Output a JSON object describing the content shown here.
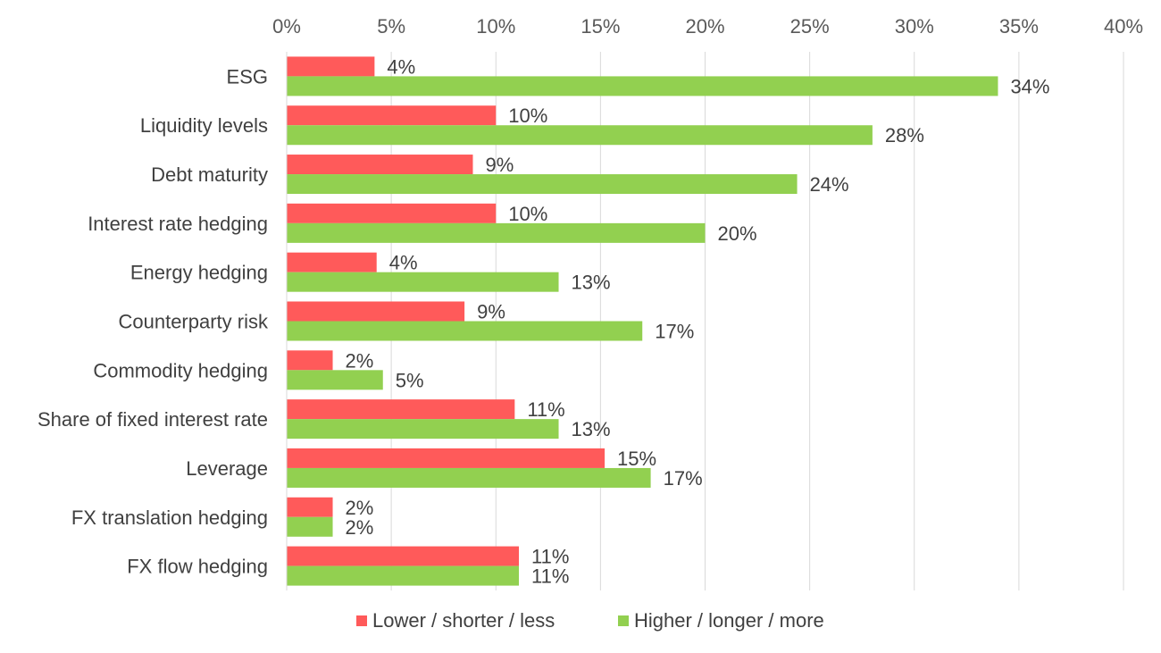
{
  "chart_data": {
    "type": "bar",
    "orientation": "horizontal",
    "title": "",
    "xlabel": "",
    "ylabel": "",
    "xlim": [
      0,
      40
    ],
    "x_ticks": [
      0,
      5,
      10,
      15,
      20,
      25,
      30,
      35,
      40
    ],
    "x_tick_labels": [
      "0%",
      "5%",
      "10%",
      "15%",
      "20%",
      "25%",
      "30%",
      "35%",
      "40%"
    ],
    "axis_position": "top",
    "grid": true,
    "legend_position": "bottom",
    "categories": [
      "ESG",
      "Liquidity levels",
      "Debt maturity",
      "Interest rate hedging",
      "Energy hedging",
      "Counterparty risk",
      "Commodity hedging",
      "Share of fixed interest rate",
      "Leverage",
      "FX translation hedging",
      "FX flow hedging"
    ],
    "series": [
      {
        "name": "Lower / shorter / less",
        "color": "#FF5A5A",
        "values": [
          4.2,
          10,
          8.9,
          10,
          4.3,
          8.5,
          2.2,
          10.9,
          15.2,
          2.2,
          11.1
        ],
        "labels": [
          "4%",
          "10%",
          "9%",
          "10%",
          "4%",
          "9%",
          "2%",
          "11%",
          "15%",
          "2%",
          "11%"
        ]
      },
      {
        "name": "Higher / longer / more",
        "color": "#92D050",
        "values": [
          34,
          28,
          24.4,
          20,
          13,
          17,
          4.6,
          13,
          17.4,
          2.2,
          11.1
        ],
        "labels": [
          "34%",
          "28%",
          "24%",
          "20%",
          "13%",
          "17%",
          "5%",
          "13%",
          "17%",
          "2%",
          "11%"
        ]
      }
    ]
  }
}
